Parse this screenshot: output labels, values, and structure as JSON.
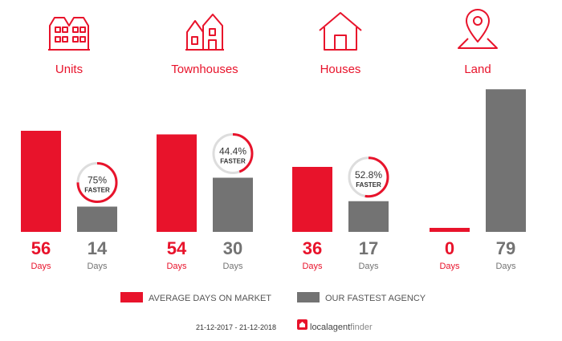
{
  "chart_data": {
    "type": "bar",
    "categories": [
      "Units",
      "Townhouses",
      "Houses",
      "Land"
    ],
    "icons": [
      "units-icon",
      "townhouses-icon",
      "houses-icon",
      "land-pin-icon"
    ],
    "series": [
      {
        "name": "AVERAGE DAYS ON MARKET",
        "values": [
          56,
          54,
          36,
          0
        ],
        "color": "#e8132b"
      },
      {
        "name": "OUR FASTEST AGENCY",
        "values": [
          14,
          30,
          17,
          79
        ],
        "color": "#737373"
      }
    ],
    "unit_label": "Days",
    "faster": [
      {
        "percent": "75%",
        "value": 0.75,
        "label": "FASTER"
      },
      {
        "percent": "44.4%",
        "value": 0.444,
        "label": "FASTER"
      },
      {
        "percent": "52.8%",
        "value": 0.528,
        "label": "FASTER"
      },
      null
    ],
    "ylim": [
      0,
      80
    ],
    "legend_position": "bottom",
    "grid": false
  },
  "footer": {
    "date_range": "21-12-2017 - 21-12-2018",
    "brand_prefix": "localagent",
    "brand_suffix": "finder"
  },
  "colors": {
    "accent": "#e8132b",
    "agency": "#737373",
    "ring_track": "#dddddd",
    "text_dark": "#555555"
  }
}
